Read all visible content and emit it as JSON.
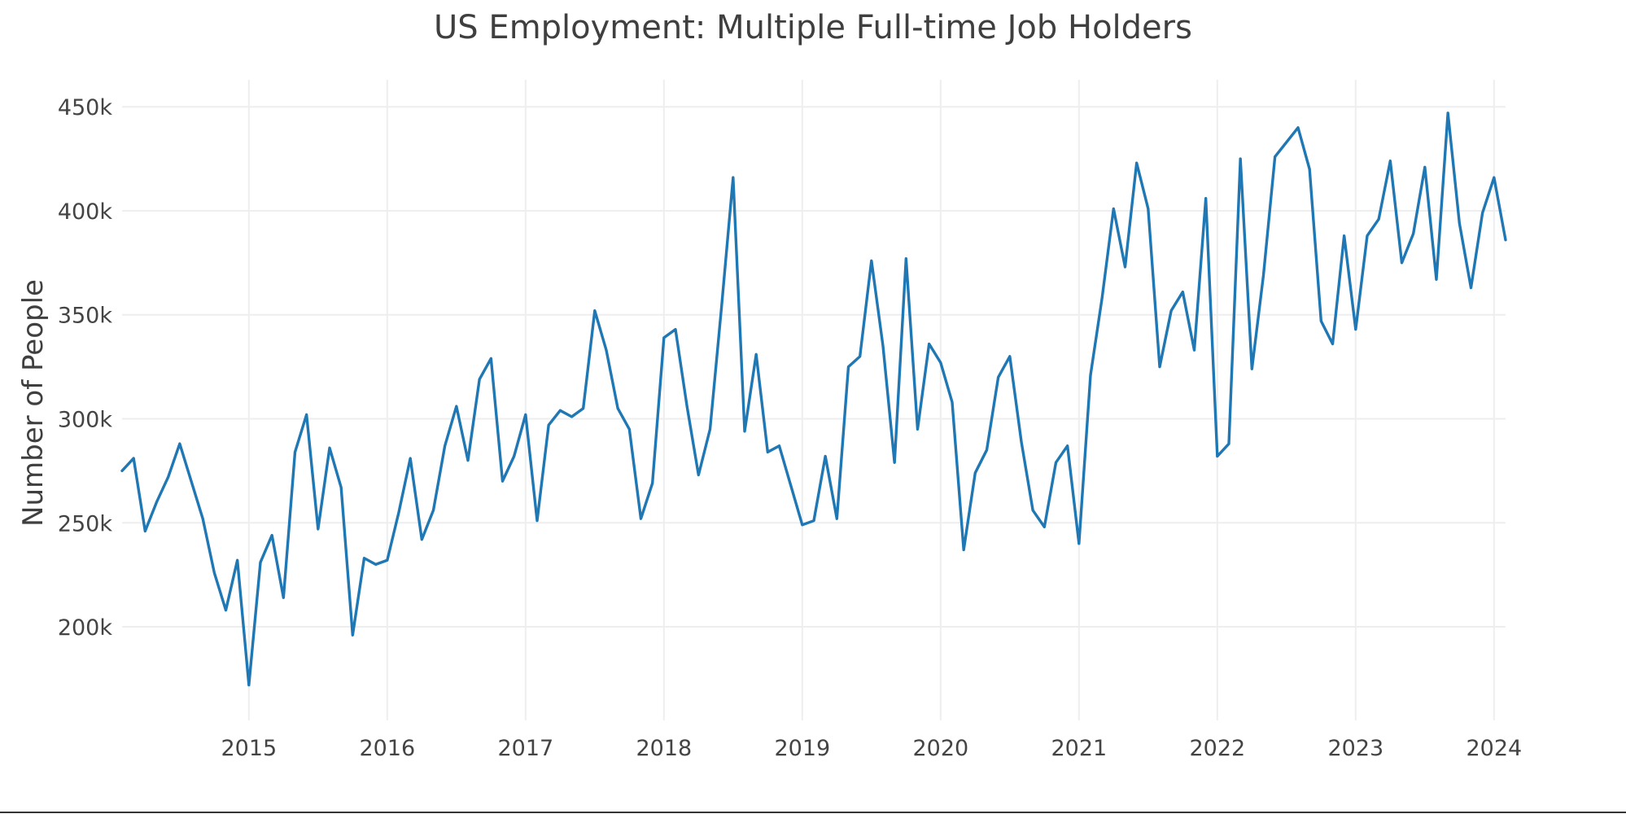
{
  "chart_data": {
    "type": "line",
    "title": "US Employment: Multiple Full-time Job Holders",
    "xlabel": "",
    "ylabel": "Number of People",
    "x_tick_labels": [
      "2015",
      "2016",
      "2017",
      "2018",
      "2019",
      "2020",
      "2021",
      "2022",
      "2023",
      "2024"
    ],
    "y_tick_labels": [
      "200k",
      "250k",
      "300k",
      "350k",
      "400k",
      "450k"
    ],
    "y_ticks": [
      200000,
      250000,
      300000,
      350000,
      400000,
      450000
    ],
    "xlim": [
      "2014-02",
      "2024-02"
    ],
    "ylim": [
      155000,
      463000
    ],
    "grid": true,
    "legend": "none",
    "colors": {
      "series": "#1f77b4",
      "grid": "#eeeeee",
      "text": "#3f3f3f"
    },
    "series": [
      {
        "x": [
          "2014-02",
          "2014-03",
          "2014-04",
          "2014-05",
          "2014-06",
          "2014-07",
          "2014-08",
          "2014-09",
          "2014-10",
          "2014-11",
          "2014-12",
          "2015-01",
          "2015-02",
          "2015-03",
          "2015-04",
          "2015-05",
          "2015-06",
          "2015-07",
          "2015-08",
          "2015-09",
          "2015-10",
          "2015-11",
          "2015-12",
          "2016-01",
          "2016-02",
          "2016-03",
          "2016-04",
          "2016-05",
          "2016-06",
          "2016-07",
          "2016-08",
          "2016-09",
          "2016-10",
          "2016-11",
          "2016-12",
          "2017-01",
          "2017-02",
          "2017-03",
          "2017-04",
          "2017-05",
          "2017-06",
          "2017-07",
          "2017-08",
          "2017-09",
          "2017-10",
          "2017-11",
          "2017-12",
          "2018-01",
          "2018-02",
          "2018-03",
          "2018-04",
          "2018-05",
          "2018-06",
          "2018-07",
          "2018-08",
          "2018-09",
          "2018-10",
          "2018-11",
          "2018-12",
          "2019-01",
          "2019-02",
          "2019-03",
          "2019-04",
          "2019-05",
          "2019-06",
          "2019-07",
          "2019-08",
          "2019-09",
          "2019-10",
          "2019-11",
          "2019-12",
          "2020-01",
          "2020-02",
          "2020-03",
          "2020-04",
          "2020-05",
          "2020-06",
          "2020-07",
          "2020-08",
          "2020-09",
          "2020-10",
          "2020-11",
          "2020-12",
          "2021-01",
          "2021-02",
          "2021-03",
          "2021-04",
          "2021-05",
          "2021-06",
          "2021-07",
          "2021-08",
          "2021-09",
          "2021-10",
          "2021-11",
          "2021-12",
          "2022-01",
          "2022-02",
          "2022-03",
          "2022-04",
          "2022-05",
          "2022-06",
          "2022-07",
          "2022-08",
          "2022-09",
          "2022-10",
          "2022-11",
          "2022-12",
          "2023-01",
          "2023-02",
          "2023-03",
          "2023-04",
          "2023-05",
          "2023-06",
          "2023-07",
          "2023-08",
          "2023-09",
          "2023-10",
          "2023-11",
          "2023-12",
          "2024-01",
          "2024-02"
        ],
        "y": [
          275000,
          281000,
          246000,
          260000,
          272000,
          288000,
          270000,
          252000,
          226000,
          208000,
          232000,
          172000,
          231000,
          244000,
          214000,
          284000,
          302000,
          247000,
          286000,
          267000,
          196000,
          233000,
          230000,
          232000,
          255000,
          281000,
          242000,
          256000,
          287000,
          306000,
          280000,
          319000,
          329000,
          270000,
          282000,
          302000,
          251000,
          297000,
          304000,
          301000,
          305000,
          352000,
          333000,
          305000,
          295000,
          252000,
          269000,
          339000,
          343000,
          306000,
          273000,
          295000,
          354000,
          416000,
          294000,
          331000,
          284000,
          287000,
          268000,
          249000,
          251000,
          282000,
          252000,
          325000,
          330000,
          376000,
          335000,
          279000,
          377000,
          295000,
          336000,
          327000,
          308000,
          237000,
          274000,
          285000,
          320000,
          330000,
          289000,
          256000,
          248000,
          279000,
          287000,
          240000,
          321000,
          358000,
          401000,
          373000,
          423000,
          401000,
          325000,
          352000,
          361000,
          333000,
          406000,
          282000,
          288000,
          425000,
          324000,
          369000,
          426000,
          433000,
          440000,
          420000,
          347000,
          336000,
          388000,
          343000,
          388000,
          396000,
          424000,
          375000,
          389000,
          421000,
          367000,
          447000,
          394000,
          363000,
          399000,
          416000,
          386000
        ]
      }
    ]
  }
}
